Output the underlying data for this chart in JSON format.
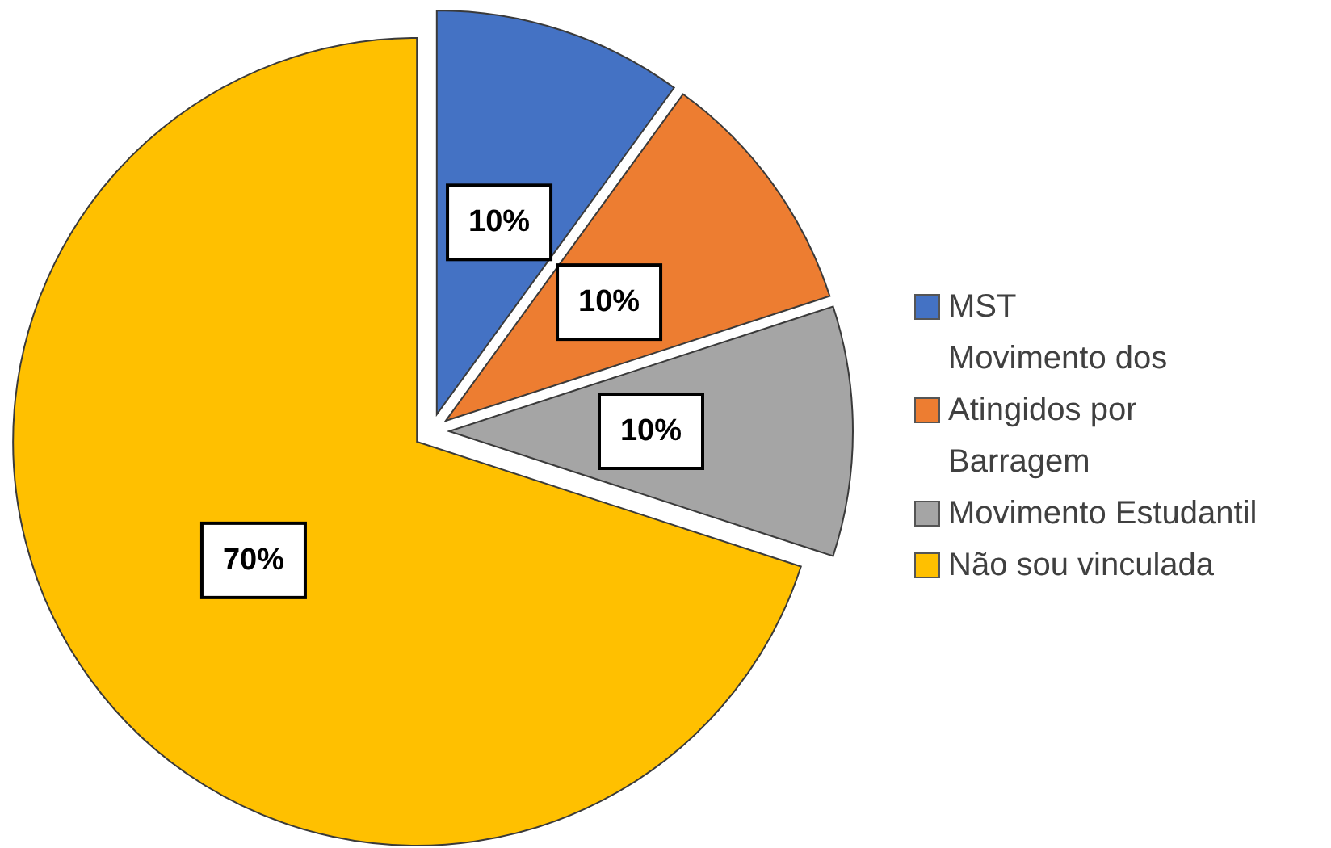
{
  "chart_data": {
    "type": "pie",
    "categories": [
      "MST",
      "Movimento dos Atingidos por Barragem",
      "Movimento Estudantil",
      "Não sou vinculada"
    ],
    "values": [
      10,
      10,
      10,
      70
    ],
    "colors": [
      "#4472c4",
      "#ed7d31",
      "#a5a5a5",
      "#ffc000"
    ],
    "value_labels": [
      "10%",
      "10%",
      "10%",
      "70%"
    ],
    "legend": "right"
  }
}
